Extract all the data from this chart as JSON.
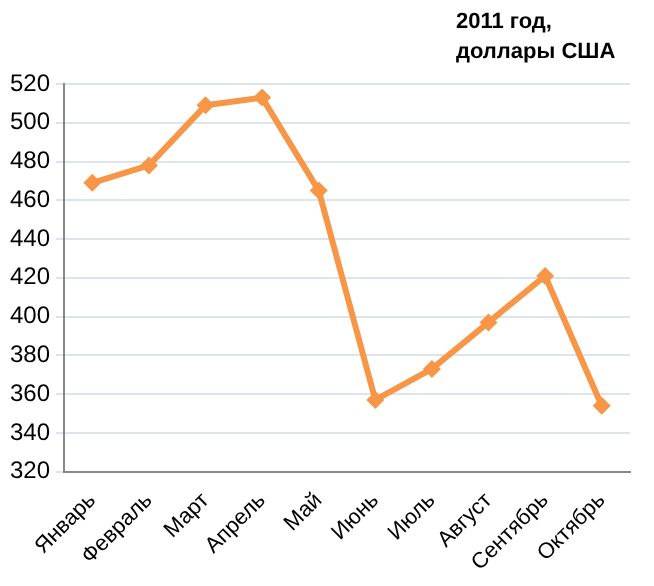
{
  "chart_data": {
    "type": "line",
    "title": "2011 год, доллары США",
    "categories": [
      "Январь",
      "Февраль",
      "Март",
      "Апрель",
      "Май",
      "Июнь",
      "Июль",
      "Август",
      "Сентябрь",
      "Октябрь"
    ],
    "series": [
      {
        "color": "#f79646",
        "values": [
          469,
          478,
          509,
          513,
          465,
          357,
          373,
          397,
          421,
          354
        ]
      }
    ],
    "ylim": [
      320,
      520
    ],
    "yticks": [
      320,
      340,
      360,
      380,
      400,
      420,
      440,
      460,
      480,
      500,
      520
    ],
    "grid": "y",
    "legend": false,
    "marker": "diamond",
    "line_style": "solid"
  }
}
